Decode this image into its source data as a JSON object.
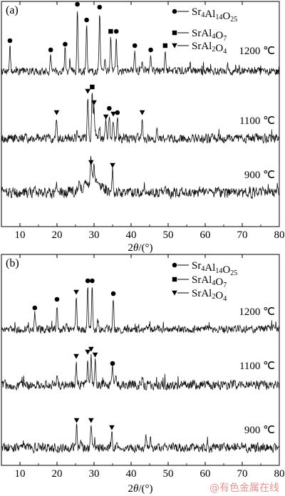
{
  "chart_data": [
    {
      "type": "line",
      "panel_label": "(a)",
      "xlabel_parts": [
        "2",
        "θ",
        "/(°)"
      ],
      "xlim": [
        5,
        80
      ],
      "xticks": [
        "10",
        "20",
        "30",
        "40",
        "50",
        "60",
        "70",
        "80"
      ],
      "legend": [
        {
          "marker": "circle",
          "name_parts": [
            [
              "Sr",
              ""
            ],
            [
              "4",
              "sub"
            ],
            [
              "Al",
              ""
            ],
            [
              "14",
              "sub"
            ],
            [
              "O",
              ""
            ],
            [
              "25",
              "sub"
            ]
          ]
        },
        {
          "marker": "square",
          "name_parts": [
            [
              "SrAl",
              ""
            ],
            [
              "4",
              "sub"
            ],
            [
              "O",
              ""
            ],
            [
              "7",
              "sub"
            ]
          ]
        },
        {
          "marker": "triangle",
          "name_parts": [
            [
              "SrAl",
              ""
            ],
            [
              "2",
              "sub"
            ],
            [
              "O",
              ""
            ],
            [
              "4",
              "sub"
            ]
          ]
        }
      ],
      "series": [
        {
          "temperature": "1200 ℃",
          "noise": 5,
          "peaks": [
            {
              "x": 7.3,
              "h": 35,
              "marker": "circle"
            },
            {
              "x": 18.3,
              "h": 22,
              "marker": "circle"
            },
            {
              "x": 22.2,
              "h": 30,
              "marker": "circle"
            },
            {
              "x": 25.5,
              "h": 86,
              "marker": "circle"
            },
            {
              "x": 28.0,
              "h": 64,
              "marker": "circle"
            },
            {
              "x": 31.5,
              "h": 82,
              "marker": "circle"
            },
            {
              "x": 34.5,
              "h": 48,
              "marker": "square"
            },
            {
              "x": 36.0,
              "h": 48,
              "marker": "circle"
            },
            {
              "x": 41.0,
              "h": 28,
              "marker": "circle"
            },
            {
              "x": 45.3,
              "h": 22,
              "marker": "circle"
            },
            {
              "x": 49.2,
              "h": 28,
              "marker": "square"
            },
            {
              "x": 23.5,
              "h": 10
            },
            {
              "x": 33.0,
              "h": 14
            },
            {
              "x": 43.0,
              "h": 9
            },
            {
              "x": 56.0,
              "h": 9
            },
            {
              "x": 66.0,
              "h": 10
            }
          ]
        },
        {
          "temperature": "1100 ℃",
          "noise": 6,
          "peaks": [
            {
              "x": 19.9,
              "h": 28,
              "marker": "triangle"
            },
            {
              "x": 28.3,
              "h": 58,
              "marker": "triangle"
            },
            {
              "x": 29.5,
              "h": 64,
              "marker": "square"
            },
            {
              "x": 30.0,
              "h": 42,
              "marker": "triangle"
            },
            {
              "x": 33.2,
              "h": 22,
              "marker": "triangle"
            },
            {
              "x": 34.1,
              "h": 34,
              "marker": "circle"
            },
            {
              "x": 35.2,
              "h": 26,
              "marker": "triangle"
            },
            {
              "x": 36.3,
              "h": 28,
              "marker": "circle"
            },
            {
              "x": 43.0,
              "h": 28,
              "marker": "triangle"
            },
            {
              "x": 25.5,
              "h": 10
            },
            {
              "x": 31.5,
              "h": 12
            },
            {
              "x": 47.0,
              "h": 8
            }
          ]
        },
        {
          "temperature": "900 ℃",
          "noise": 7,
          "hump": {
            "center": 29.5,
            "width": 3.5,
            "h": 14
          },
          "peaks": [
            {
              "x": 29.2,
              "h": 34,
              "marker": "triangle"
            },
            {
              "x": 30.0,
              "h": 22
            },
            {
              "x": 35.0,
              "h": 30,
              "marker": "triangle"
            },
            {
              "x": 20.0,
              "h": 10
            },
            {
              "x": 26.0,
              "h": 10
            }
          ]
        }
      ]
    },
    {
      "type": "line",
      "panel_label": "(b)",
      "xlabel_parts": [
        "2",
        "θ",
        "/(°)"
      ],
      "xlim": [
        5,
        80
      ],
      "xticks": [
        "10",
        "20",
        "30",
        "40",
        "50",
        "60",
        "70",
        "80"
      ],
      "legend": [
        {
          "marker": "circle",
          "name_parts": [
            [
              "Sr",
              ""
            ],
            [
              "4",
              "sub"
            ],
            [
              "Al",
              ""
            ],
            [
              "14",
              "sub"
            ],
            [
              "O",
              ""
            ],
            [
              "25",
              "sub"
            ]
          ]
        },
        {
          "marker": "square",
          "name_parts": [
            [
              "SrAl",
              ""
            ],
            [
              "4",
              "sub"
            ],
            [
              "O",
              ""
            ],
            [
              "7",
              "sub"
            ]
          ]
        },
        {
          "marker": "triangle",
          "name_parts": [
            [
              "SrAl",
              ""
            ],
            [
              "2",
              "sub"
            ],
            [
              "O",
              ""
            ],
            [
              "4",
              "sub"
            ]
          ]
        }
      ],
      "series": [
        {
          "temperature": "1200 ℃",
          "noise": 5,
          "peaks": [
            {
              "x": 14.0,
              "h": 22,
              "marker": "circle"
            },
            {
              "x": 20.0,
              "h": 34,
              "marker": "circle"
            },
            {
              "x": 25.2,
              "h": 44,
              "marker": "triangle"
            },
            {
              "x": 28.3,
              "h": 60,
              "marker": "circle"
            },
            {
              "x": 29.5,
              "h": 60,
              "marker": "circle"
            },
            {
              "x": 35.2,
              "h": 42,
              "marker": "circle"
            },
            {
              "x": 22.5,
              "h": 10
            },
            {
              "x": 31.0,
              "h": 14
            },
            {
              "x": 45.0,
              "h": 9
            }
          ]
        },
        {
          "temperature": "1100 ℃",
          "noise": 6,
          "peaks": [
            {
              "x": 25.2,
              "h": 32,
              "marker": "triangle"
            },
            {
              "x": 28.3,
              "h": 38,
              "marker": "triangle"
            },
            {
              "x": 29.2,
              "h": 42,
              "marker": "triangle"
            },
            {
              "x": 30.3,
              "h": 34,
              "marker": "triangle"
            },
            {
              "x": 35.0,
              "h": 22,
              "marker": "circle"
            },
            {
              "x": 20.0,
              "h": 10
            },
            {
              "x": 36.0,
              "h": 14
            },
            {
              "x": 43.0,
              "h": 8
            }
          ]
        },
        {
          "temperature": "900 ℃",
          "noise": 6,
          "peaks": [
            {
              "x": 25.3,
              "h": 30,
              "marker": "triangle"
            },
            {
              "x": 29.2,
              "h": 30,
              "marker": "triangle"
            },
            {
              "x": 34.8,
              "h": 20,
              "marker": "triangle"
            },
            {
              "x": 44.0,
              "h": 14
            },
            {
              "x": 45.2,
              "h": 10
            },
            {
              "x": 26.5,
              "h": 8
            }
          ]
        }
      ]
    }
  ],
  "watermark": "@有色金属在线"
}
